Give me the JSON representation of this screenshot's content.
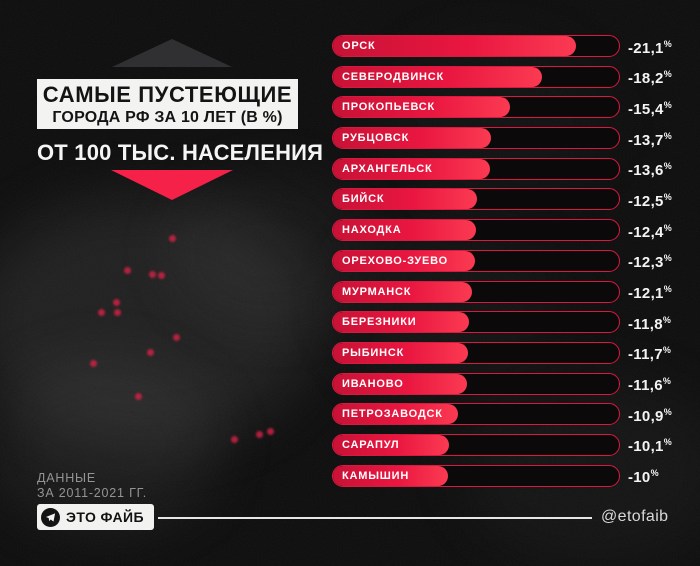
{
  "header": {
    "title_line1": "САМЫЕ ПУСТЕЮЩИЕ",
    "title_line2": "ГОРОДА РФ ЗА 10 ЛЕТ (В %)",
    "subtitle": "ОТ 100 ТЫС. НАСЕЛЕНИЯ"
  },
  "footer": {
    "source_line1": "ДАННЫЕ",
    "source_line2": "ЗА 2011-2021 ГГ.",
    "badge_label": "ЭТО ФАЙБ",
    "badge_icon": "telegram-icon",
    "handle": "@etofaib"
  },
  "colors": {
    "accent_red": "#f62149",
    "bar_fill_start": "#c81236",
    "bar_fill_end": "#fb3a52",
    "bar_border": "#d81940",
    "background": "#0d0d0e",
    "title_box_bg": "#f3f3f1"
  },
  "chart_data": {
    "type": "bar",
    "orientation": "horizontal",
    "title": "САМЫЕ ПУСТЕЮЩИЕ ГОРОДА РФ ЗА 10 ЛЕТ (В %) ОТ 100 ТЫС. НАСЕЛЕНИЯ",
    "subtitle": "ДАННЫЕ ЗА 2011-2021 ГГ.",
    "unit": "%",
    "percent_suffix": "%",
    "value_axis_max": 24.85,
    "grid": false,
    "legend": false,
    "rows": [
      {
        "city": "ОРСК",
        "value": -21.1,
        "display": "-21,1"
      },
      {
        "city": "СЕВЕРОДВИНСК",
        "value": -18.2,
        "display": "-18,2"
      },
      {
        "city": "ПРОКОПЬЕВСК",
        "value": -15.4,
        "display": "-15,4"
      },
      {
        "city": "РУБЦОВСК",
        "value": -13.7,
        "display": "-13,7"
      },
      {
        "city": "АРХАНГЕЛЬСК",
        "value": -13.6,
        "display": "-13,6"
      },
      {
        "city": "БИЙСК",
        "value": -12.5,
        "display": "-12,5"
      },
      {
        "city": "НАХОДКА",
        "value": -12.4,
        "display": "-12,4"
      },
      {
        "city": "ОРЕХОВО-ЗУЕВО",
        "value": -12.3,
        "display": "-12,3"
      },
      {
        "city": "МУРМАНСК",
        "value": -12.1,
        "display": "-12,1"
      },
      {
        "city": "БЕРЕЗНИКИ",
        "value": -11.8,
        "display": "-11,8"
      },
      {
        "city": "РЫБИНСК",
        "value": -11.7,
        "display": "-11,7"
      },
      {
        "city": "ИВАНОВО",
        "value": -11.6,
        "display": "-11,6"
      },
      {
        "city": "ПЕТРОЗАВОДСК",
        "value": -10.9,
        "display": "-10,9"
      },
      {
        "city": "САРАПУЛ",
        "value": -10.1,
        "display": "-10,1"
      },
      {
        "city": "КАМЫШИН",
        "value": -10.0,
        "display": "-10"
      }
    ]
  }
}
